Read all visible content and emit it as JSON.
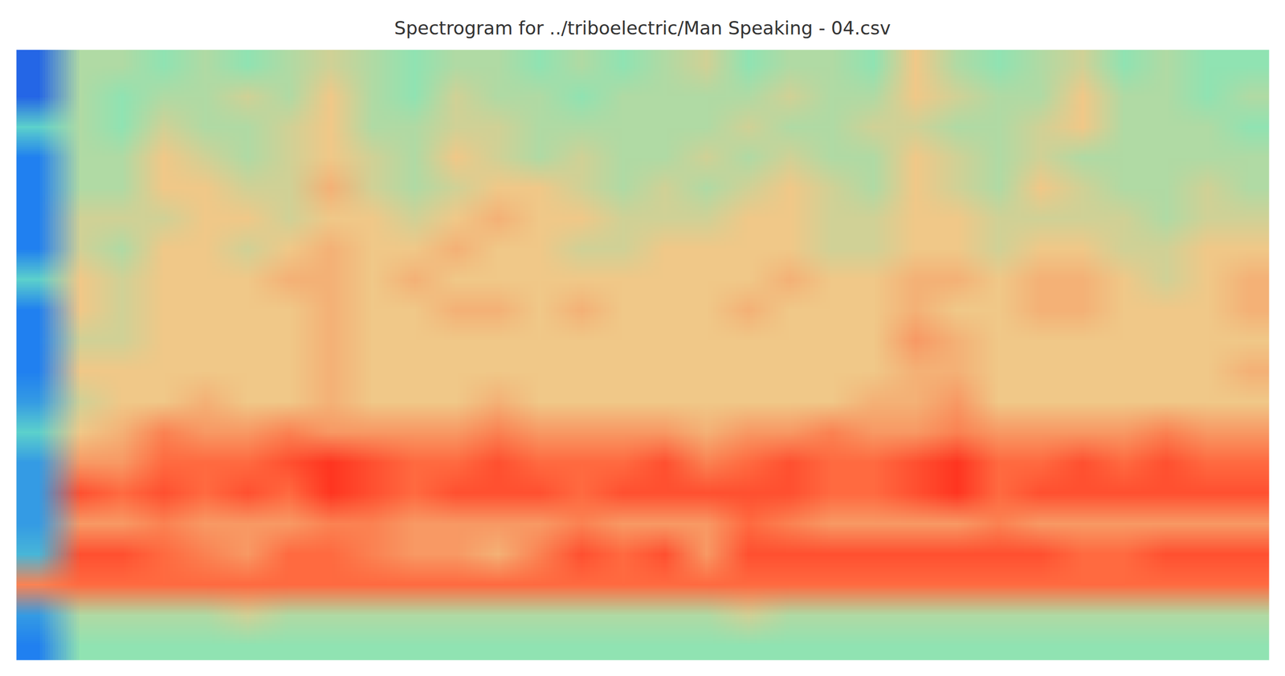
{
  "chart_data": {
    "type": "heatmap",
    "title": "Spectrogram for ../triboelectric/Man Speaking - 04.csv",
    "tick_labels": false,
    "color_range": [
      0,
      10
    ],
    "cells": [
      [
        1.5,
        5,
        5,
        4.5,
        5,
        4.5,
        5,
        5.5,
        5,
        4.5,
        5,
        5,
        4.5,
        5,
        4.5,
        5,
        5.5,
        4.5,
        5,
        5,
        4.5,
        6,
        5,
        4.5,
        5,
        5.5,
        4.5,
        5,
        4.5,
        4.5
      ],
      [
        1.5,
        5,
        4.5,
        5,
        5,
        5.5,
        5,
        6,
        5,
        4.5,
        5.5,
        5,
        5,
        4.5,
        5,
        5,
        5,
        5,
        5.5,
        5,
        5,
        6,
        5.5,
        5,
        5,
        6,
        5,
        5,
        4.5,
        5
      ],
      [
        3.5,
        5,
        4.5,
        5.5,
        5,
        5,
        5.5,
        6,
        5,
        5,
        5.5,
        5.5,
        5,
        5,
        5,
        5,
        5,
        5.5,
        5,
        5,
        5.5,
        5.5,
        5,
        5,
        5.5,
        6,
        5,
        5,
        5,
        4.5
      ],
      [
        2,
        5,
        5,
        6,
        5.5,
        5,
        5.5,
        6,
        5.5,
        5,
        6,
        5.5,
        5,
        5.5,
        5,
        5,
        5.5,
        5,
        5.5,
        5,
        5,
        6,
        5.5,
        5,
        5.5,
        5,
        5,
        5,
        5,
        5
      ],
      [
        2,
        5,
        5,
        6,
        6,
        5.5,
        5.5,
        6.5,
        5.5,
        5,
        5.5,
        6,
        6,
        5.5,
        5,
        5.5,
        5,
        5.5,
        6,
        5.5,
        5,
        6,
        5.5,
        5,
        6,
        5.5,
        5,
        5,
        5.5,
        5
      ],
      [
        2,
        5.5,
        5.5,
        5.5,
        6,
        6,
        5.5,
        6,
        6,
        5.5,
        6,
        6.5,
        6,
        6,
        5.5,
        5.5,
        5.5,
        6,
        6,
        5.5,
        5.5,
        6,
        6,
        5.5,
        5.5,
        5.5,
        5.5,
        5,
        5.5,
        5.5
      ],
      [
        2,
        5.5,
        5,
        6,
        6,
        5.5,
        6,
        6.5,
        6,
        6,
        6.5,
        6,
        6,
        5.5,
        5.5,
        6,
        6,
        6,
        6,
        5.5,
        5.5,
        6,
        6,
        5.5,
        6,
        6,
        5.5,
        5.5,
        6,
        6
      ],
      [
        3.5,
        6,
        5.5,
        6,
        6,
        6,
        6.5,
        6.5,
        6,
        6.5,
        6,
        6,
        6,
        6,
        6,
        6,
        6,
        6,
        6.5,
        6,
        6,
        6.5,
        6.5,
        6,
        6.5,
        6.5,
        6,
        5.5,
        6,
        6.5
      ],
      [
        2,
        6,
        5.5,
        6,
        6,
        6,
        6,
        6.5,
        6,
        6,
        6.5,
        6.5,
        6,
        6.5,
        6,
        6,
        6,
        6.5,
        6,
        6,
        6,
        6.5,
        6,
        6,
        6.5,
        6.5,
        6,
        6,
        6,
        6.5
      ],
      [
        2,
        5.5,
        5.5,
        6,
        6,
        6,
        6,
        6.5,
        6,
        6,
        6,
        6,
        6,
        6,
        6,
        6,
        6,
        6,
        6,
        6,
        6,
        7,
        6.5,
        6,
        6,
        6,
        6,
        6,
        6,
        6
      ],
      [
        2,
        6,
        6,
        6,
        6,
        6,
        6,
        6.5,
        6,
        6,
        6,
        6,
        6,
        6,
        6,
        6,
        6,
        6,
        6,
        6,
        6,
        6.5,
        6.5,
        6,
        6,
        6,
        6,
        6,
        6,
        6.5
      ],
      [
        2.5,
        5.5,
        6,
        6,
        6.5,
        6,
        6,
        6.5,
        6,
        6,
        6,
        6.5,
        6,
        6,
        6,
        6,
        6,
        6,
        6,
        6,
        6.5,
        6.5,
        7,
        6,
        6,
        6,
        6,
        6,
        6,
        6
      ],
      [
        3.5,
        6,
        6.5,
        7.5,
        7,
        7,
        7.5,
        7,
        7,
        7,
        7,
        7.5,
        7,
        7,
        7,
        7,
        6.5,
        7,
        7,
        7.5,
        7,
        7,
        7.5,
        7,
        7,
        7,
        7,
        7.5,
        7,
        7
      ],
      [
        2.5,
        7,
        7,
        8,
        8,
        8,
        8.5,
        9,
        8.5,
        8,
        8,
        8.5,
        8,
        8,
        8,
        8.5,
        7.5,
        8,
        8.5,
        8,
        8,
        8.5,
        9,
        8,
        8,
        8.5,
        8,
        8.5,
        8,
        8
      ],
      [
        2.5,
        8.5,
        8,
        8.5,
        8,
        8.5,
        8,
        9,
        8.5,
        8,
        8.5,
        8.5,
        8.5,
        8,
        8.5,
        8.5,
        8.5,
        8.5,
        8.5,
        8,
        8,
        8.5,
        9,
        8,
        8.5,
        8.5,
        8.5,
        8.5,
        8.5,
        8.5
      ],
      [
        2.5,
        7,
        7,
        7.5,
        7,
        7,
        7,
        7.5,
        7.5,
        7,
        7,
        7,
        7,
        7.5,
        7,
        7,
        7,
        8,
        7.5,
        7,
        7,
        7,
        7,
        7.5,
        7,
        7,
        7,
        7,
        7,
        7
      ],
      [
        3,
        8.5,
        8.5,
        8,
        7.5,
        7,
        8,
        8,
        7.5,
        7,
        7,
        6.5,
        7.5,
        8.5,
        8,
        8.5,
        7,
        8.5,
        8.5,
        8.5,
        8.5,
        8.5,
        8.5,
        8.5,
        8.5,
        8,
        8,
        8.5,
        8.5,
        8.5
      ],
      [
        7.5,
        8,
        8,
        8,
        8,
        8,
        8,
        8,
        8,
        8,
        8,
        8,
        8,
        8,
        8,
        8,
        8,
        8,
        8,
        8,
        8,
        8,
        8,
        8,
        8,
        8,
        8,
        8,
        8,
        8
      ],
      [
        2.5,
        5,
        5,
        5,
        5,
        5.5,
        5,
        5,
        5,
        5,
        5,
        5,
        5,
        5,
        5,
        5,
        5,
        5.5,
        5,
        5,
        5,
        5,
        5,
        5,
        5,
        5,
        5,
        5,
        5,
        5
      ],
      [
        2,
        4.5,
        4.5,
        4.5,
        4.5,
        4.5,
        4.5,
        4.5,
        4.5,
        4.5,
        4.5,
        4.5,
        4.5,
        4.5,
        4.5,
        4.5,
        4.5,
        4.5,
        4.5,
        4.5,
        4.5,
        4.5,
        4.5,
        4.5,
        4.5,
        4.5,
        4.5,
        4.5,
        4.5,
        4.5
      ]
    ]
  }
}
